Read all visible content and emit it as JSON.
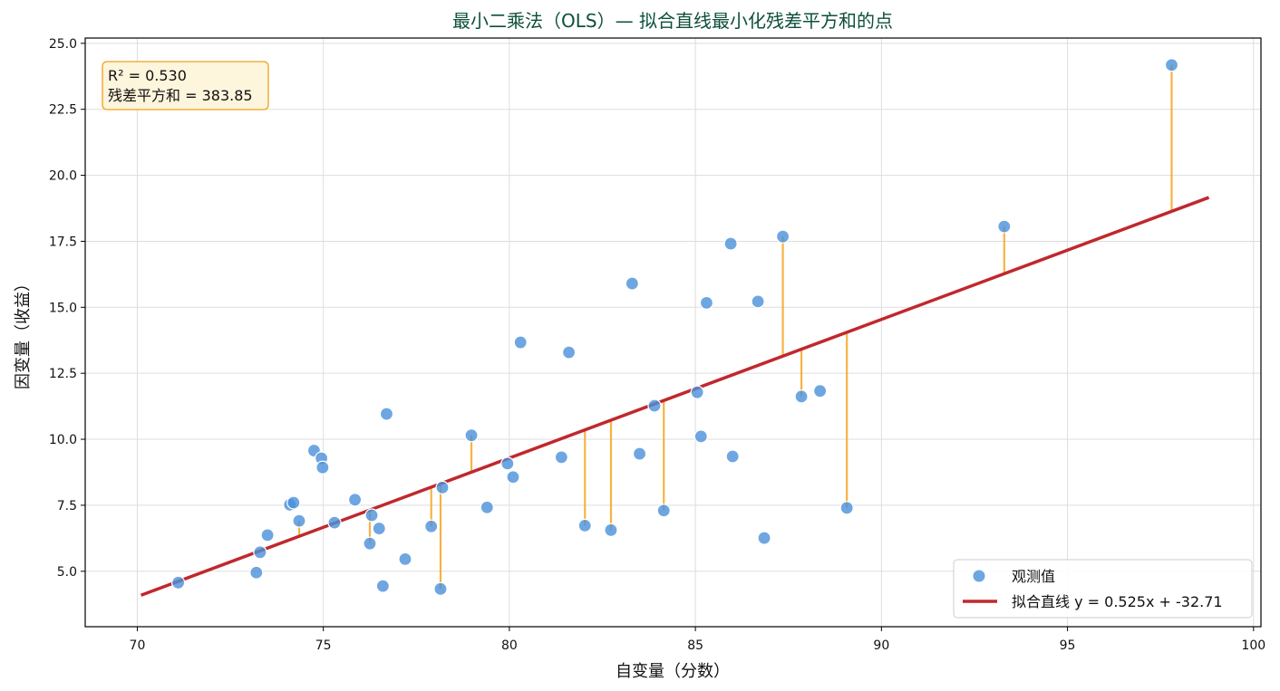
{
  "chart_data": {
    "type": "scatter",
    "title": "最小二乘法（OLS）— 拟合直线最小化残差平方和的点",
    "xlabel": "自变量（分数）",
    "ylabel": "因变量（收益）",
    "xlim": [
      68.6,
      100.2
    ],
    "ylim": [
      2.9,
      25.2
    ],
    "xticks": [
      70,
      75,
      80,
      85,
      90,
      95,
      100
    ],
    "yticks": [
      5.0,
      7.5,
      10.0,
      12.5,
      15.0,
      17.5,
      20.0,
      22.5,
      25.0
    ],
    "grid": true,
    "legend_position": "bottom-right",
    "series": [
      {
        "name": "观测值",
        "kind": "scatter",
        "color": "#4a90d9",
        "points": [
          [
            71.1,
            4.57
          ],
          [
            73.2,
            4.95
          ],
          [
            73.3,
            5.72
          ],
          [
            73.5,
            6.37
          ],
          [
            74.1,
            7.52
          ],
          [
            74.2,
            7.6
          ],
          [
            74.35,
            6.91
          ],
          [
            74.75,
            9.57
          ],
          [
            74.95,
            9.28
          ],
          [
            74.98,
            8.93
          ],
          [
            75.3,
            6.84
          ],
          [
            75.85,
            7.71
          ],
          [
            76.25,
            6.05
          ],
          [
            76.3,
            7.12
          ],
          [
            76.5,
            6.62
          ],
          [
            76.6,
            4.44
          ],
          [
            76.7,
            10.96
          ],
          [
            77.2,
            5.46
          ],
          [
            77.9,
            6.7
          ],
          [
            78.15,
            4.33
          ],
          [
            78.2,
            8.17
          ],
          [
            78.98,
            10.15
          ],
          [
            79.4,
            7.42
          ],
          [
            79.95,
            9.08
          ],
          [
            80.1,
            8.57
          ],
          [
            80.3,
            13.67
          ],
          [
            81.4,
            9.32
          ],
          [
            81.6,
            13.29
          ],
          [
            82.03,
            6.73
          ],
          [
            82.73,
            6.56
          ],
          [
            83.3,
            15.9
          ],
          [
            83.5,
            9.45
          ],
          [
            83.9,
            11.27
          ],
          [
            84.15,
            7.3
          ],
          [
            85.05,
            11.78
          ],
          [
            85.15,
            10.11
          ],
          [
            85.3,
            15.17
          ],
          [
            85.95,
            17.41
          ],
          [
            86.0,
            9.35
          ],
          [
            86.68,
            15.22
          ],
          [
            86.85,
            6.26
          ],
          [
            87.35,
            17.68
          ],
          [
            87.85,
            11.62
          ],
          [
            88.35,
            11.83
          ],
          [
            89.07,
            7.4
          ],
          [
            93.3,
            18.06
          ],
          [
            97.8,
            24.18
          ]
        ]
      },
      {
        "name": "拟合直线 y = 0.525x + -32.71",
        "kind": "line",
        "color": "#c0282d",
        "slope": 0.525,
        "intercept": -32.71,
        "x_range": [
          70.1,
          98.8
        ]
      }
    ],
    "residual_lines": {
      "color": "#f5a623",
      "points_x": [
        74.35,
        76.25,
        77.9,
        78.15,
        78.98,
        82.03,
        82.73,
        84.15,
        87.35,
        87.85,
        89.07,
        93.3,
        97.8
      ]
    },
    "annotation": {
      "line1": "R² = 0.530",
      "line2": "残差平方和 = 383.85",
      "background": "#fdf5dc",
      "border": "#f0a01a"
    }
  }
}
